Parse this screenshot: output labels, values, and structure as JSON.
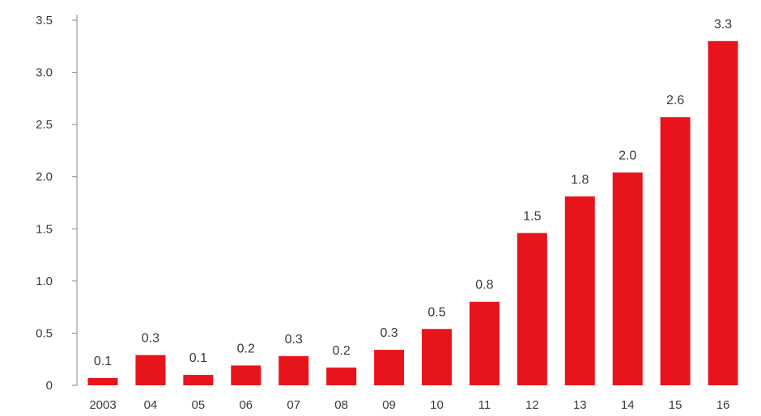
{
  "chart_data": {
    "type": "bar",
    "categories": [
      "2003",
      "04",
      "05",
      "06",
      "07",
      "08",
      "09",
      "10",
      "11",
      "12",
      "13",
      "14",
      "15",
      "16"
    ],
    "values": [
      0.07,
      0.29,
      0.1,
      0.19,
      0.28,
      0.17,
      0.34,
      0.54,
      0.8,
      1.46,
      1.81,
      2.04,
      2.57,
      3.3
    ],
    "data_labels": [
      "0.1",
      "0.3",
      "0.1",
      "0.2",
      "0.3",
      "0.2",
      "0.3",
      "0.5",
      "0.8",
      "1.5",
      "1.8",
      "2.0",
      "2.6",
      "3.3"
    ],
    "y_ticks": [
      "0",
      "0.5",
      "1.0",
      "1.5",
      "2.0",
      "2.5",
      "3.0",
      "3.5"
    ],
    "ylim": [
      0,
      3.5
    ],
    "grid": false,
    "legend": "none",
    "colors": {
      "bar": "#e8141c",
      "axis": "#8a8a8a",
      "text": "#3a3a3a"
    }
  }
}
